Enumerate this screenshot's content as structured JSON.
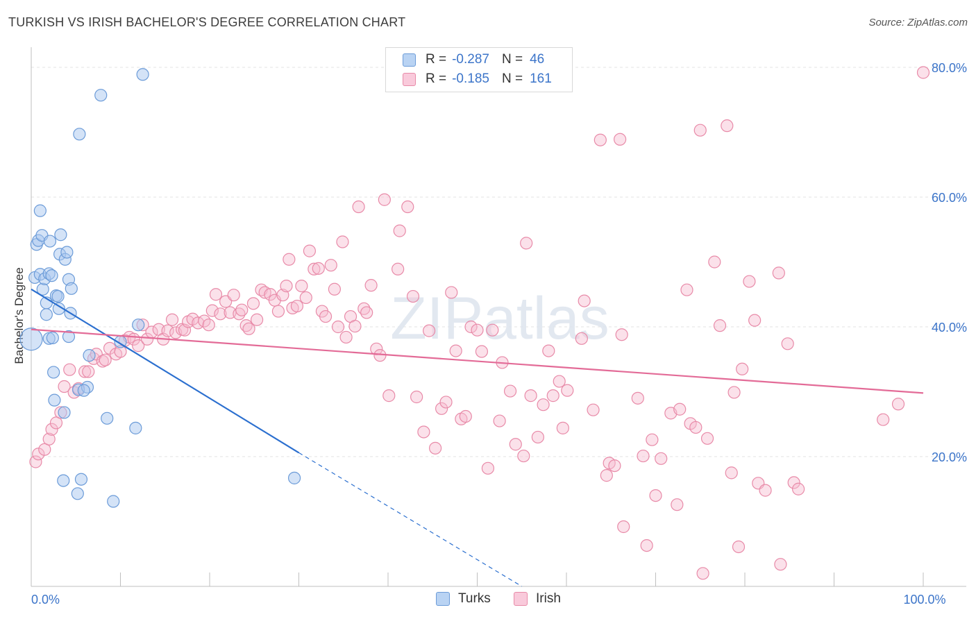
{
  "title": "TURKISH VS IRISH BACHELOR'S DEGREE CORRELATION CHART",
  "source": "Source: ZipAtlas.com",
  "watermark": "ZIPatlas",
  "legend": {
    "rows": [
      {
        "r_label": "R =",
        "r_value": "-0.287",
        "n_label": "N =",
        "n_value": "46"
      },
      {
        "r_label": "R =",
        "r_value": "-0.185",
        "n_label": "N =",
        "n_value": "161"
      }
    ]
  },
  "bottom_legend": [
    "Turks",
    "Irish"
  ],
  "colors": {
    "turks_fill": "#a9c8f0",
    "turks_stroke": "#6b9bd8",
    "turks_line": "#2b6fcf",
    "irish_fill": "#f7bcd0",
    "irish_stroke": "#e88aa8",
    "irish_line": "#e36b97",
    "tick_text": "#3b74c9",
    "grid": "#e3e3e3"
  },
  "chart_data": {
    "type": "scatter",
    "xlabel": "",
    "ylabel": "Bachelor's Degree",
    "xlim": [
      0,
      100
    ],
    "ylim": [
      0,
      85
    ],
    "x_tick_labels": [
      {
        "value": 0,
        "label": "0.0%"
      },
      {
        "value": 100,
        "label": "100.0%"
      }
    ],
    "y_tick_labels": [
      {
        "value": 20,
        "label": "20.0%"
      },
      {
        "value": 40,
        "label": "40.0%"
      },
      {
        "value": 60,
        "label": "60.0%"
      },
      {
        "value": 80,
        "label": "80.0%"
      }
    ],
    "grid": true,
    "series": [
      {
        "name": "Turks",
        "trend": {
          "x0": 0,
          "y0": 45.8,
          "x1": 30,
          "y1": 20.6,
          "dashed_to_x": 55
        },
        "points": [
          [
            0,
            38.1
          ],
          [
            0.4,
            47.6
          ],
          [
            0.6,
            52.7
          ],
          [
            0.8,
            53.3
          ],
          [
            1,
            48.1
          ],
          [
            1,
            57.9
          ],
          [
            1.2,
            54.1
          ],
          [
            1.3,
            45.8
          ],
          [
            1.5,
            47.4
          ],
          [
            1.7,
            41.9
          ],
          [
            1.7,
            43.7
          ],
          [
            2,
            48.2
          ],
          [
            2,
            38.2
          ],
          [
            2.1,
            53.2
          ],
          [
            2.3,
            47.9
          ],
          [
            2.4,
            38.3
          ],
          [
            2.5,
            33.0
          ],
          [
            2.6,
            28.7
          ],
          [
            2.8,
            44.8
          ],
          [
            3,
            44.7
          ],
          [
            3.1,
            42.8
          ],
          [
            3.2,
            51.2
          ],
          [
            3.3,
            54.2
          ],
          [
            3.6,
            16.3
          ],
          [
            3.7,
            26.8
          ],
          [
            3.8,
            50.4
          ],
          [
            4,
            51.5
          ],
          [
            4.2,
            47.3
          ],
          [
            4.2,
            38.5
          ],
          [
            4.4,
            42.1
          ],
          [
            4.5,
            45.9
          ],
          [
            5.2,
            14.3
          ],
          [
            5.3,
            30.3
          ],
          [
            5.4,
            69.7
          ],
          [
            5.6,
            16.5
          ],
          [
            6.3,
            30.7
          ],
          [
            6.5,
            35.6
          ],
          [
            7.8,
            75.7
          ],
          [
            8.5,
            25.9
          ],
          [
            9.2,
            13.1
          ],
          [
            10,
            37.7
          ],
          [
            11.7,
            24.4
          ],
          [
            12,
            40.3
          ],
          [
            12.5,
            78.9
          ],
          [
            29.5,
            16.7
          ],
          [
            5.9,
            30.2
          ]
        ]
      },
      {
        "name": "Irish",
        "trend": {
          "x0": 0,
          "y0": 39.6,
          "x1": 100,
          "y1": 29.8
        },
        "points": [
          [
            0.5,
            19.2
          ],
          [
            0.8,
            20.4
          ],
          [
            1.5,
            21.1
          ],
          [
            2,
            22.7
          ],
          [
            2.3,
            24.2
          ],
          [
            2.8,
            25.2
          ],
          [
            3.3,
            26.8
          ],
          [
            3.7,
            30.8
          ],
          [
            4.3,
            33.4
          ],
          [
            4.8,
            29.9
          ],
          [
            5.3,
            30.5
          ],
          [
            6,
            33.1
          ],
          [
            6.4,
            33.1
          ],
          [
            7,
            35.1
          ],
          [
            7.3,
            35.8
          ],
          [
            8,
            34.7
          ],
          [
            8.3,
            34.9
          ],
          [
            8.8,
            36.7
          ],
          [
            9.5,
            35.8
          ],
          [
            10,
            36.2
          ],
          [
            10.5,
            37.9
          ],
          [
            11,
            38.4
          ],
          [
            11.5,
            38.1
          ],
          [
            12,
            37.1
          ],
          [
            12.5,
            40.3
          ],
          [
            13,
            38.1
          ],
          [
            13.5,
            39.2
          ],
          [
            14.3,
            39.6
          ],
          [
            14.8,
            38.1
          ],
          [
            15.3,
            39.4
          ],
          [
            15.8,
            41.1
          ],
          [
            16.2,
            39.1
          ],
          [
            16.9,
            39.6
          ],
          [
            17.2,
            39.5
          ],
          [
            17.6,
            40.8
          ],
          [
            18.1,
            41.2
          ],
          [
            18.7,
            40.6
          ],
          [
            19.4,
            40.9
          ],
          [
            19.9,
            40.3
          ],
          [
            20.3,
            42.5
          ],
          [
            20.7,
            45.0
          ],
          [
            21.2,
            42.0
          ],
          [
            21.8,
            43.9
          ],
          [
            22.3,
            42.2
          ],
          [
            22.7,
            44.9
          ],
          [
            23.3,
            42.0
          ],
          [
            23.6,
            42.6
          ],
          [
            24.1,
            40.2
          ],
          [
            24.4,
            39.7
          ],
          [
            24.9,
            43.6
          ],
          [
            25.3,
            41.1
          ],
          [
            25.8,
            45.7
          ],
          [
            26.2,
            45.3
          ],
          [
            26.8,
            45.0
          ],
          [
            27.3,
            44.1
          ],
          [
            27.7,
            42.4
          ],
          [
            28.2,
            44.9
          ],
          [
            28.6,
            46.3
          ],
          [
            28.9,
            50.4
          ],
          [
            29.3,
            42.9
          ],
          [
            29.8,
            43.2
          ],
          [
            30.3,
            46.3
          ],
          [
            30.8,
            44.5
          ],
          [
            31.2,
            51.7
          ],
          [
            31.7,
            48.9
          ],
          [
            32.2,
            49.0
          ],
          [
            32.6,
            42.4
          ],
          [
            33.0,
            41.6
          ],
          [
            33.6,
            49.5
          ],
          [
            34.0,
            45.8
          ],
          [
            34.4,
            40.0
          ],
          [
            34.9,
            53.1
          ],
          [
            35.3,
            38.4
          ],
          [
            35.8,
            41.6
          ],
          [
            36.3,
            40.1
          ],
          [
            36.7,
            58.5
          ],
          [
            37.3,
            42.8
          ],
          [
            37.6,
            42.2
          ],
          [
            38.1,
            46.4
          ],
          [
            38.7,
            36.6
          ],
          [
            39.1,
            35.6
          ],
          [
            39.6,
            59.6
          ],
          [
            40.1,
            29.4
          ],
          [
            41.1,
            48.9
          ],
          [
            41.3,
            54.8
          ],
          [
            42.2,
            58.5
          ],
          [
            42.8,
            44.7
          ],
          [
            43.2,
            29.2
          ],
          [
            44.0,
            23.8
          ],
          [
            44.6,
            39.4
          ],
          [
            45.3,
            21.3
          ],
          [
            46.0,
            27.4
          ],
          [
            46.5,
            28.4
          ],
          [
            47.1,
            45.3
          ],
          [
            47.6,
            36.3
          ],
          [
            48.2,
            25.8
          ],
          [
            48.7,
            26.2
          ],
          [
            49.3,
            40.0
          ],
          [
            50.0,
            39.5
          ],
          [
            50.5,
            36.2
          ],
          [
            51.2,
            18.2
          ],
          [
            51.7,
            39.5
          ],
          [
            52.5,
            25.5
          ],
          [
            52.8,
            34.5
          ],
          [
            53.7,
            30.1
          ],
          [
            54.3,
            21.9
          ],
          [
            55.2,
            20.1
          ],
          [
            55.5,
            52.9
          ],
          [
            56.0,
            29.4
          ],
          [
            56.8,
            23.0
          ],
          [
            57.4,
            28.0
          ],
          [
            58.0,
            36.3
          ],
          [
            58.5,
            29.4
          ],
          [
            59.2,
            31.6
          ],
          [
            59.6,
            24.4
          ],
          [
            60.1,
            30.2
          ],
          [
            61.7,
            38.2
          ],
          [
            62.0,
            44.0
          ],
          [
            63.0,
            27.2
          ],
          [
            63.8,
            68.8
          ],
          [
            64.5,
            17.1
          ],
          [
            64.8,
            19.0
          ],
          [
            65.4,
            18.6
          ],
          [
            66.0,
            68.9
          ],
          [
            66.2,
            38.8
          ],
          [
            66.4,
            9.2
          ],
          [
            68.0,
            29.0
          ],
          [
            68.6,
            20.1
          ],
          [
            69.0,
            6.3
          ],
          [
            69.6,
            22.6
          ],
          [
            70.0,
            14.0
          ],
          [
            70.6,
            19.7
          ],
          [
            71.7,
            26.7
          ],
          [
            72.4,
            12.6
          ],
          [
            72.7,
            27.3
          ],
          [
            73.5,
            45.7
          ],
          [
            73.9,
            25.1
          ],
          [
            74.5,
            24.5
          ],
          [
            75.0,
            70.3
          ],
          [
            75.3,
            2.0
          ],
          [
            75.8,
            22.8
          ],
          [
            76.6,
            50.0
          ],
          [
            77.2,
            40.2
          ],
          [
            78.0,
            71.0
          ],
          [
            78.5,
            17.5
          ],
          [
            78.8,
            29.9
          ],
          [
            79.3,
            6.1
          ],
          [
            79.7,
            33.5
          ],
          [
            80.5,
            47.0
          ],
          [
            81.1,
            41.0
          ],
          [
            81.5,
            15.9
          ],
          [
            82.3,
            14.8
          ],
          [
            83.8,
            48.3
          ],
          [
            84.0,
            3.4
          ],
          [
            84.8,
            37.4
          ],
          [
            85.5,
            16.0
          ],
          [
            86.0,
            15.0
          ],
          [
            95.5,
            25.7
          ],
          [
            97.2,
            28.1
          ],
          [
            100.0,
            79.2
          ]
        ]
      }
    ]
  }
}
